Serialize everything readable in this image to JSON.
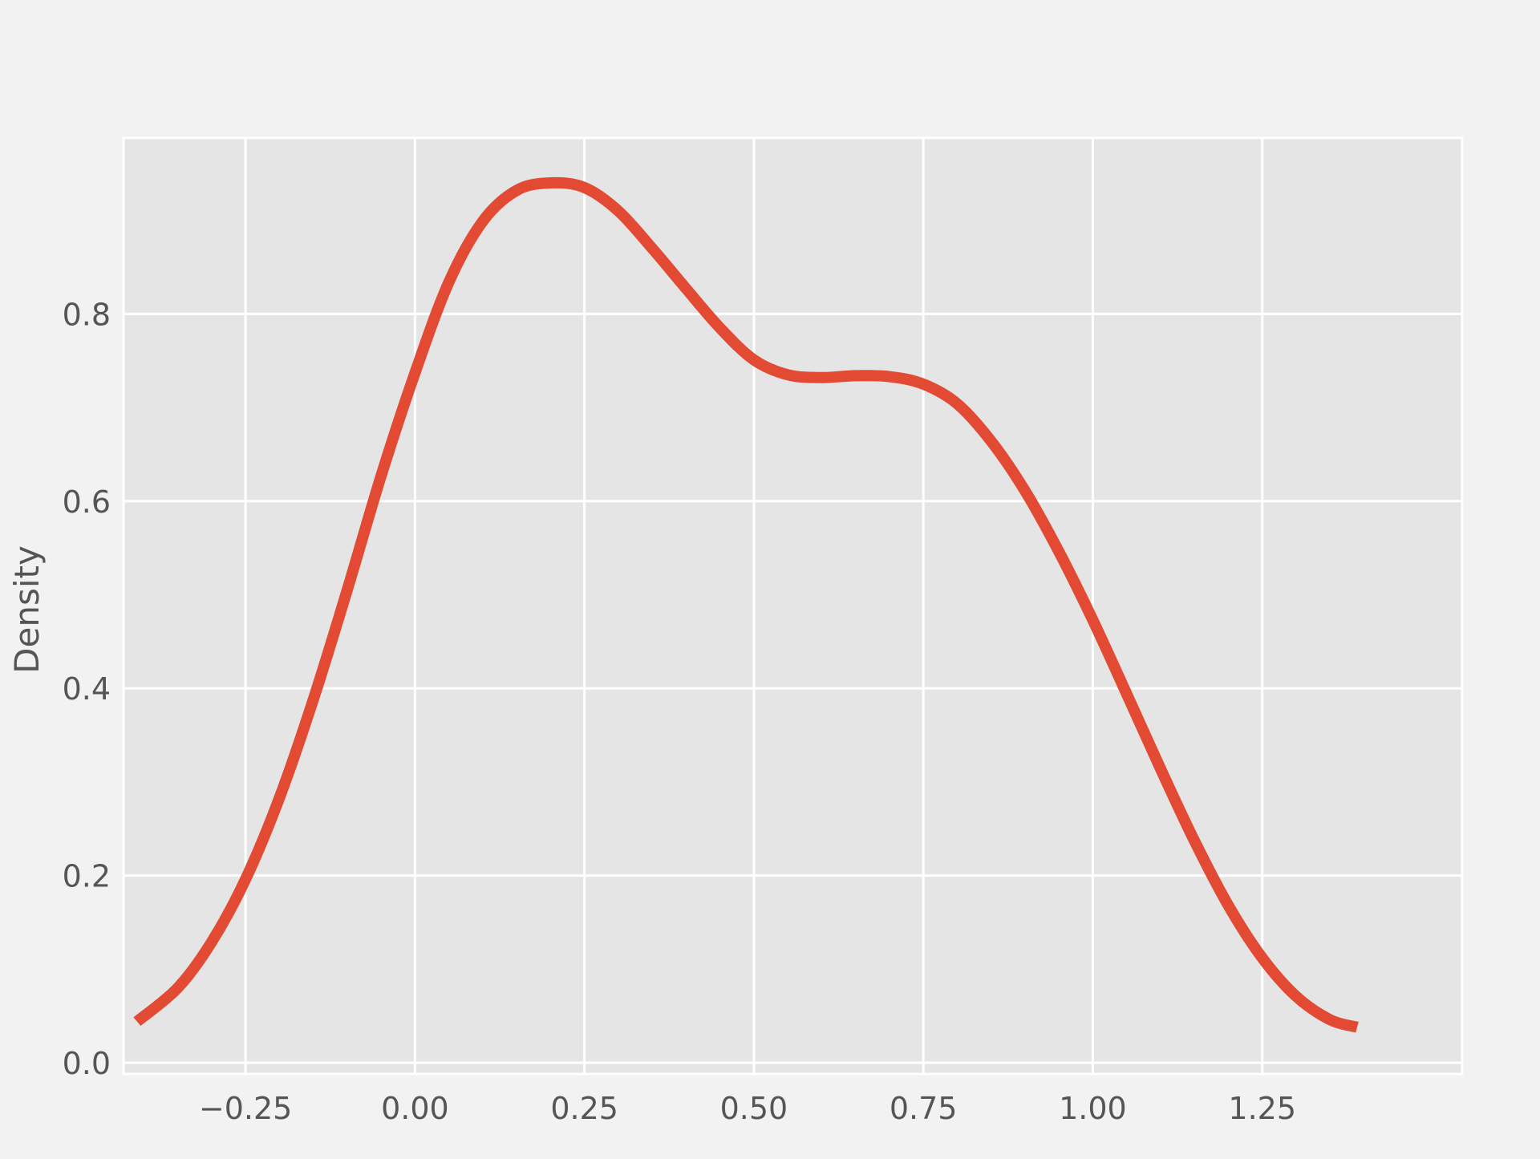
{
  "chart_data": {
    "type": "line",
    "title": "",
    "xlabel": "",
    "ylabel": "Density",
    "xlim": [
      -0.43,
      1.545
    ],
    "ylim": [
      -0.012,
      0.988
    ],
    "x_ticks": [
      -0.25,
      0.0,
      0.25,
      0.5,
      0.75,
      1.0,
      1.25
    ],
    "x_tick_labels": [
      "−0.25",
      "0.00",
      "0.25",
      "0.50",
      "0.75",
      "1.00",
      "1.25"
    ],
    "y_ticks": [
      0.0,
      0.2,
      0.4,
      0.6,
      0.8
    ],
    "y_tick_labels": [
      "0.0",
      "0.2",
      "0.4",
      "0.6",
      "0.8"
    ],
    "grid": true,
    "colors": {
      "figure_bg": "#f2f2f2",
      "plot_bg": "#e5e5e5",
      "grid": "#ffffff",
      "line": "#e24a33",
      "text": "#555555"
    },
    "series": [
      {
        "x": [
          -0.41,
          -0.35,
          -0.3,
          -0.25,
          -0.2,
          -0.15,
          -0.1,
          -0.05,
          0.0,
          0.05,
          0.1,
          0.15,
          0.2,
          0.25,
          0.3,
          0.35,
          0.4,
          0.45,
          0.5,
          0.55,
          0.6,
          0.65,
          0.7,
          0.75,
          0.8,
          0.85,
          0.9,
          0.95,
          1.0,
          1.05,
          1.1,
          1.15,
          1.2,
          1.25,
          1.3,
          1.35,
          1.39
        ],
        "values": [
          0.044,
          0.08,
          0.129,
          0.196,
          0.283,
          0.388,
          0.505,
          0.627,
          0.737,
          0.834,
          0.899,
          0.932,
          0.94,
          0.935,
          0.91,
          0.87,
          0.827,
          0.785,
          0.751,
          0.735,
          0.732,
          0.734,
          0.733,
          0.725,
          0.704,
          0.664,
          0.611,
          0.546,
          0.473,
          0.394,
          0.314,
          0.237,
          0.168,
          0.112,
          0.071,
          0.046,
          0.038
        ]
      }
    ]
  }
}
